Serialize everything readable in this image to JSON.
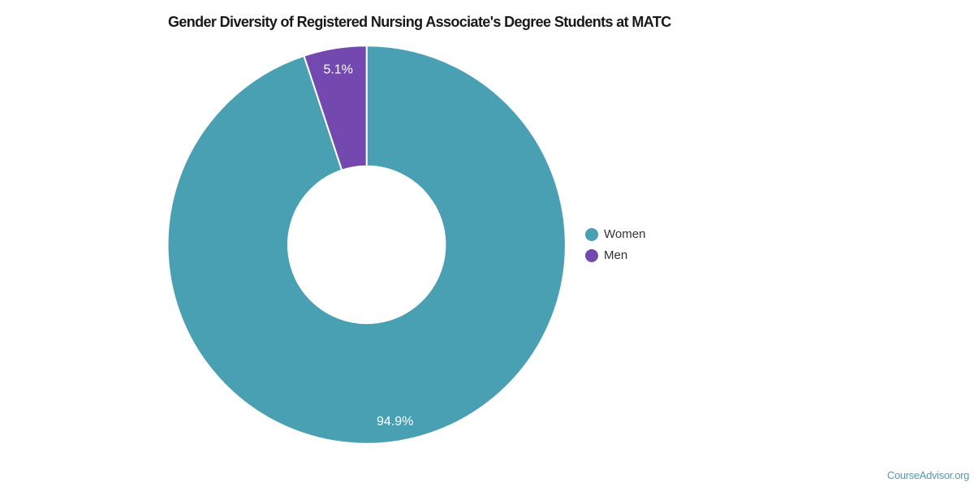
{
  "chart_data": {
    "type": "pie",
    "title": "Gender Diversity of Registered Nursing Associate's Degree Students at MATC",
    "series": [
      {
        "name": "Women",
        "value": 94.9,
        "label": "94.9%",
        "color": "#49A0B2"
      },
      {
        "name": "Men",
        "value": 5.1,
        "label": "5.1%",
        "color": "#7349B0"
      }
    ],
    "donut": true,
    "inner_radius_pct": 40,
    "start_angle_deg": 0,
    "legend_position": "right",
    "data_label_color": "#ffffff",
    "background": "#ffffff"
  },
  "footer": {
    "brand": "CourseAdvisor.org"
  }
}
